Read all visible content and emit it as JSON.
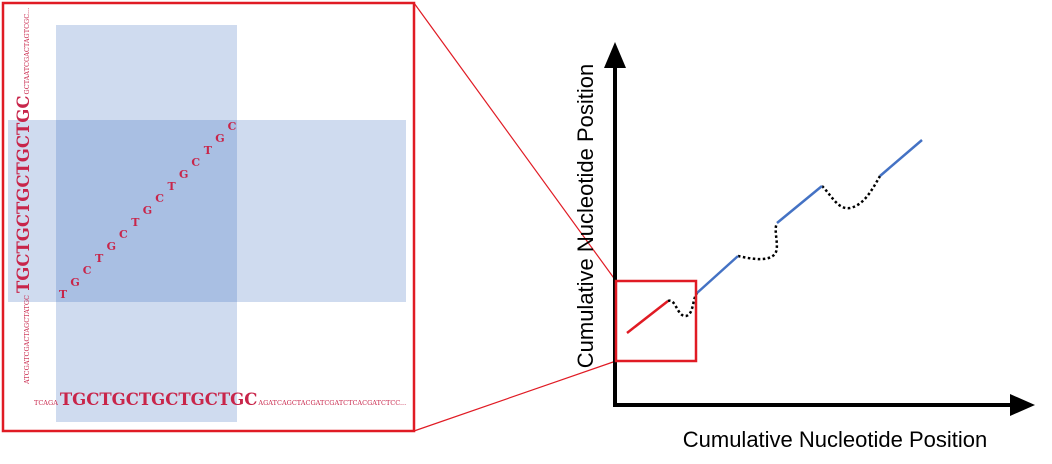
{
  "colors": {
    "accent_red": "#e01b24",
    "sequence_red": "#c8254a",
    "band_light": "#cfdbef",
    "band_overlap": "#a9bfe3",
    "line_blue": "#4472c4",
    "axis": "#000000"
  },
  "zoom_panel": {
    "x_sequence": {
      "prefix": "TCAGA",
      "repeat": "TGCTGCTGCTGCTGC",
      "suffix": "AGATCAGCTACGATCGATCTCACGATCTCC..."
    },
    "y_sequence": {
      "prefix": "ATCGATCGACTAGCTATGC",
      "repeat": "TGCTGCTGCTGCTGC",
      "suffix": "GCTAATCGACTAGTCGC..."
    },
    "diagonal_letters": [
      "T",
      "G",
      "C",
      "T",
      "G",
      "C",
      "T",
      "G",
      "C",
      "T",
      "G",
      "C",
      "T",
      "G",
      "C"
    ]
  },
  "plot": {
    "x_axis_label": "Cumulative Nucleotide Position",
    "y_axis_label": "Cumulative Nucleotide Position"
  }
}
